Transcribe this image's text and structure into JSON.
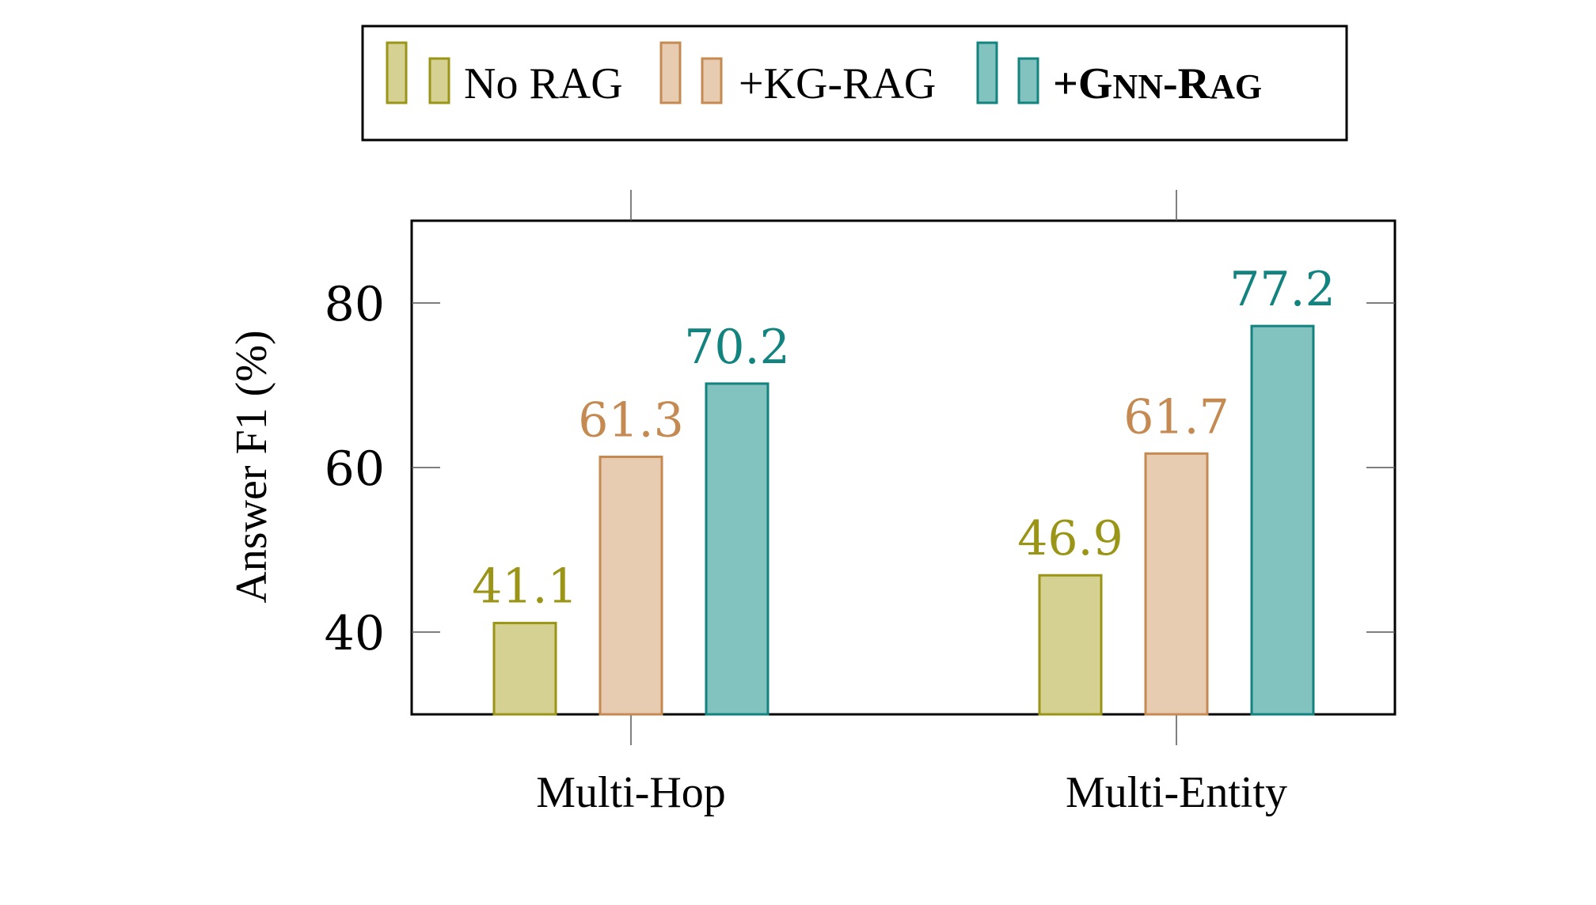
{
  "chart_data": {
    "type": "bar",
    "title": "",
    "xlabel": "",
    "ylabel": "Answer F1 (%)",
    "ylim": [
      30,
      90
    ],
    "yticks": [
      40,
      60,
      80
    ],
    "categories": [
      "Multi-Hop",
      "Multi-Entity"
    ],
    "series": [
      {
        "name": "No RAG",
        "values": [
          41.1,
          46.9
        ],
        "value_labels": [
          "41.1",
          "46.9"
        ],
        "fill": "#d5d192",
        "stroke": "#9a9516",
        "text_color": "#9a9516"
      },
      {
        "name": "+KG-RAG",
        "values": [
          61.3,
          61.7
        ],
        "value_labels": [
          "61.3",
          "61.7"
        ],
        "fill": "#e8ccb2",
        "stroke": "#c48a52",
        "text_color": "#c48a52"
      },
      {
        "name": "+GNN-RAG",
        "name_parts": [
          {
            "text": "+G",
            "size": "large"
          },
          {
            "text": "NN",
            "size": "small"
          },
          {
            "text": "-R",
            "size": "large"
          },
          {
            "text": "AG",
            "size": "small"
          }
        ],
        "values": [
          70.2,
          77.2
        ],
        "value_labels": [
          "70.2",
          "77.2"
        ],
        "fill": "#82c2bf",
        "stroke": "#13837f",
        "text_color": "#13837f"
      }
    ],
    "legend_position": "top-center",
    "grid": false
  }
}
